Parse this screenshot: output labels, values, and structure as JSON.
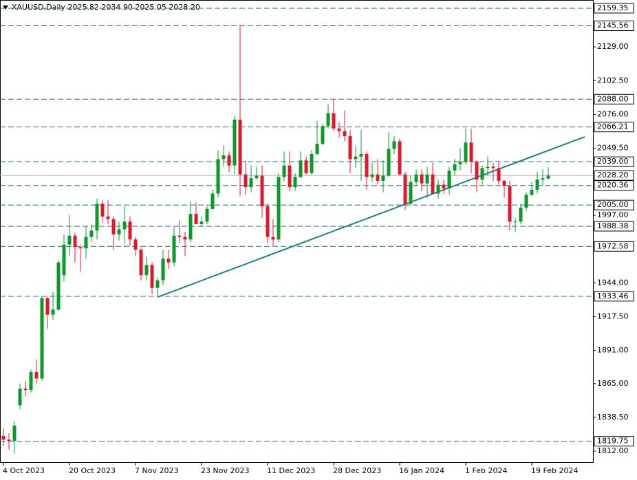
{
  "chart_data": {
    "type": "candlestick",
    "title": "XAUUSD,Daily  2025.82 2034.90 2025.05 2028.20",
    "categories": [
      "4 Oct 2023",
      null,
      null,
      null,
      null,
      null,
      null,
      null,
      null,
      null,
      null,
      null,
      "20 Oct 2023",
      null,
      null,
      null,
      null,
      null,
      null,
      null,
      null,
      null,
      null,
      null,
      "7 Nov 2023",
      null,
      null,
      null,
      null,
      null,
      null,
      null,
      null,
      null,
      null,
      null,
      "23 Nov 2023",
      null,
      null,
      null,
      null,
      null,
      null,
      null,
      null,
      null,
      null,
      null,
      "11 Dec 2023",
      null,
      null,
      null,
      null,
      null,
      null,
      null,
      null,
      null,
      null,
      null,
      "28 Dec 2023",
      null,
      null,
      null,
      null,
      null,
      null,
      null,
      null,
      null,
      null,
      null,
      "16 Jan 2024",
      null,
      null,
      null,
      null,
      null,
      null,
      null,
      null,
      null,
      null,
      null,
      "1 Feb 2024",
      null,
      null,
      null,
      null,
      null,
      null,
      null,
      null,
      null,
      null,
      null,
      "19 Feb 2024",
      null,
      null,
      null
    ],
    "open": [
      1824,
      1821,
      1820,
      1848,
      1861,
      1860,
      1874,
      1869,
      1932,
      1919,
      1923,
      1950,
      1974,
      1981,
      1972,
      1971,
      1980,
      1985,
      2006,
      1996,
      1994,
      1982,
      1986,
      1992,
      1978,
      1970,
      1950,
      1958,
      1940,
      1946,
      1963,
      1960,
      1981,
      1980,
      1978,
      1998,
      1990,
      1992,
      2002,
      2014,
      2041,
      2044,
      2036,
      2072,
      2029,
      2019,
      2026,
      2028,
      2004,
      1980,
      1978,
      2027,
      2036,
      2019,
      2027,
      2040,
      2030,
      2045,
      2053,
      2067,
      2077,
      2065,
      2063,
      2059,
      2041,
      2043,
      2045,
      2027,
      2029,
      2024,
      2028,
      2049,
      2055,
      2029,
      2006,
      2023,
      2029,
      2022,
      2029,
      2014,
      2021,
      2018,
      2032,
      2037,
      2039,
      2054,
      2039,
      2025,
      2034,
      2035,
      2034,
      2024,
      2020,
      1992,
      1992,
      2003,
      2013,
      2017,
      2025,
      2025.82
    ],
    "high": [
      1830,
      1826,
      1835,
      1865,
      1867,
      1876,
      1884,
      1933,
      1933,
      1937,
      1962,
      1982,
      1997,
      1983,
      1974,
      1988,
      1990,
      2010,
      2009,
      2009,
      1996,
      1992,
      2004,
      1996,
      1980,
      1972,
      1965,
      1960,
      1948,
      1970,
      1970,
      1988,
      1993,
      1984,
      2008,
      2007,
      1996,
      2004,
      2017,
      2048,
      2052,
      2047,
      2075,
      2146,
      2040,
      2036,
      2035,
      2036,
      2006,
      1994,
      2030,
      2047,
      2047,
      2030,
      2047,
      2043,
      2048,
      2071,
      2069,
      2084,
      2088,
      2070,
      2079,
      2064,
      2051,
      2064,
      2047,
      2038,
      2041,
      2040,
      2062,
      2059,
      2057,
      2031,
      2028,
      2033,
      2033,
      2035,
      2038,
      2025,
      2025,
      2035,
      2041,
      2050,
      2065,
      2065,
      2040,
      2036,
      2043,
      2038,
      2039,
      2025,
      2024,
      1995,
      2006,
      2015,
      2023,
      2031,
      2033,
      2034.9
    ],
    "low": [
      1816,
      1813,
      1810,
      1845,
      1855,
      1858,
      1865,
      1867,
      1908,
      1915,
      1922,
      1945,
      1965,
      1960,
      1953,
      1963,
      1976,
      1978,
      1991,
      1990,
      1970,
      1977,
      1975,
      1973,
      1965,
      1946,
      1946,
      1935,
      1933,
      1942,
      1955,
      1957,
      1975,
      1965,
      1976,
      1990,
      1988,
      1990,
      2001,
      2011,
      2035,
      2031,
      2029,
      2012,
      2013,
      2015,
      2025,
      1995,
      1975,
      1973,
      1976,
      2024,
      2016,
      2016,
      2026,
      2029,
      2029,
      2044,
      2052,
      2065,
      2063,
      2058,
      2055,
      2030,
      2034,
      2024,
      2017,
      2023,
      2021,
      2015,
      2027,
      2045,
      2028,
      2001,
      2005,
      2020,
      2016,
      2011,
      2014,
      2010,
      2014,
      2013,
      2028,
      2032,
      2037,
      2030,
      2015,
      2021,
      2028,
      2024,
      2021,
      2011,
      1985,
      1984,
      1990,
      2000,
      2012,
      2014,
      2020,
      2025.05
    ],
    "close": [
      1821,
      1820,
      1832,
      1861,
      1860,
      1874,
      1869,
      1932,
      1919,
      1923,
      1960,
      1974,
      1981,
      1972,
      1971,
      1980,
      1985,
      2006,
      1996,
      1994,
      1982,
      1986,
      1992,
      1978,
      1970,
      1950,
      1958,
      1940,
      1946,
      1963,
      1960,
      1981,
      1980,
      1978,
      1998,
      1990,
      1992,
      2002,
      2014,
      2041,
      2044,
      2036,
      2072,
      2029,
      2019,
      2026,
      2028,
      2004,
      1980,
      1978,
      2027,
      2036,
      2019,
      2027,
      2040,
      2030,
      2045,
      2053,
      2067,
      2077,
      2065,
      2063,
      2059,
      2041,
      2043,
      2045,
      2027,
      2029,
      2024,
      2028,
      2049,
      2055,
      2029,
      2006,
      2023,
      2029,
      2022,
      2029,
      2014,
      2021,
      2018,
      2032,
      2037,
      2039,
      2054,
      2039,
      2025,
      2034,
      2035,
      2034,
      2024,
      2020,
      1992,
      1992,
      2003,
      2013,
      2017,
      2025,
      2026,
      2028.2
    ],
    "up_color": "#0a9a2a",
    "down_color": "#e3172b",
    "ylim": [
      1803.4,
      2165.8
    ],
    "yticks": [
      {
        "value": 2129,
        "label": "2129.00"
      },
      {
        "value": 2102.5,
        "label": "2102.50"
      },
      {
        "value": 2076,
        "label": "2076.00"
      },
      {
        "value": 2049.5,
        "label": "2049.50"
      },
      {
        "value": 1997,
        "label": "1997.00"
      },
      {
        "value": 1944,
        "label": "1944.00"
      },
      {
        "value": 1917.5,
        "label": "1917.50"
      },
      {
        "value": 1891,
        "label": "1891.00"
      },
      {
        "value": 1865,
        "label": "1865.00"
      },
      {
        "value": 1838.5,
        "label": "1838.50"
      },
      {
        "value": 1812,
        "label": "1812.00"
      }
    ],
    "levels": [
      {
        "value": 2159.35,
        "label": "2159.35"
      },
      {
        "value": 2145.56,
        "label": "2145.56"
      },
      {
        "value": 2088,
        "label": "2088.00"
      },
      {
        "value": 2066.21,
        "label": "2066.21"
      },
      {
        "value": 2039,
        "label": "2039.00"
      },
      {
        "value": 2020.36,
        "label": "2020.36"
      },
      {
        "value": 2005,
        "label": "2005.00"
      },
      {
        "value": 1988.38,
        "label": "1988.38"
      },
      {
        "value": 1972.58,
        "label": "1972.58"
      },
      {
        "value": 1933.46,
        "label": "1933.46"
      },
      {
        "value": 1819.75,
        "label": "1819.75"
      }
    ],
    "level_color": "#1f6b78",
    "current_price": {
      "value": 2028.2,
      "label": "2028.20"
    },
    "trendline": {
      "values": [
        1932.8,
        2058.5
      ],
      "color": "#17868c"
    }
  }
}
